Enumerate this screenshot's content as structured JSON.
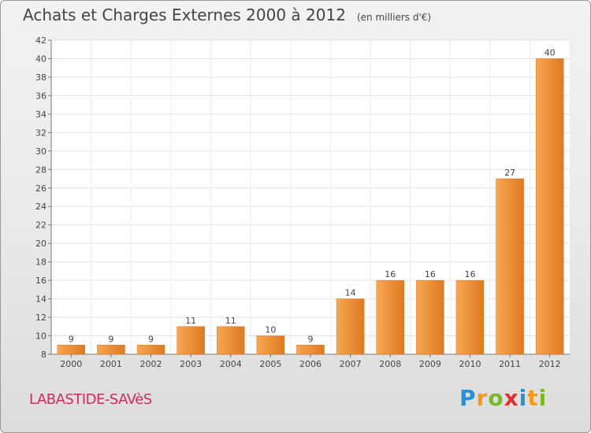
{
  "header": {
    "title": "Achats et Charges Externes 2000 à 2012",
    "unit": "(en milliers d'€)"
  },
  "footer": {
    "commune": "LABASTIDE-SAVèS",
    "logo_letters": [
      "P",
      "r",
      "o",
      "x",
      "i",
      "t",
      "i"
    ]
  },
  "colors": {
    "bar_light": "#f7a654",
    "bar_dark": "#de7a22",
    "commune_text": "#d2285a"
  },
  "chart_data": {
    "type": "bar",
    "title": "Achats et Charges Externes 2000 à 2012",
    "subtitle": "(en milliers d'€)",
    "categories": [
      "2000",
      "2001",
      "2002",
      "2003",
      "2004",
      "2005",
      "2006",
      "2007",
      "2008",
      "2009",
      "2010",
      "2011",
      "2012"
    ],
    "values": [
      9,
      9,
      9,
      11,
      11,
      10,
      9,
      14,
      16,
      16,
      16,
      27,
      40
    ],
    "ylim": [
      8,
      42
    ],
    "yticks": [
      8,
      10,
      12,
      14,
      16,
      18,
      20,
      22,
      24,
      26,
      28,
      30,
      32,
      34,
      36,
      38,
      40,
      42
    ],
    "grid": true,
    "data_labels": true
  }
}
